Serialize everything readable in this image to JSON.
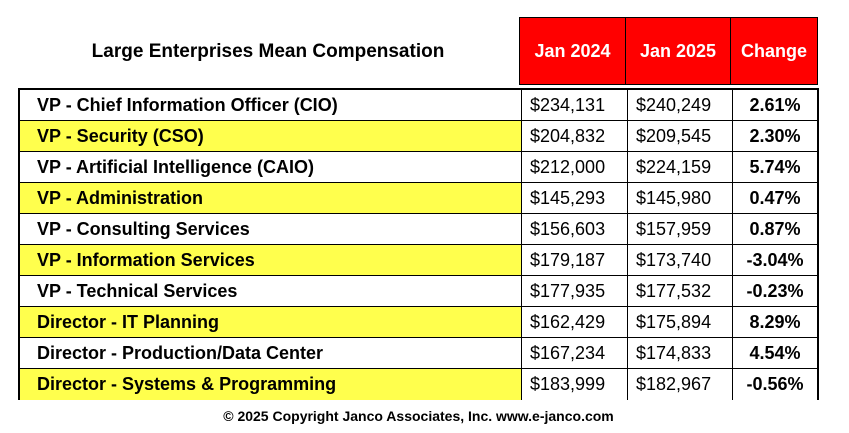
{
  "title": "Large Enterprises Mean Compensation",
  "columns": {
    "col1": "Jan 2024",
    "col2": "Jan 2025",
    "col3": "Change"
  },
  "highlight_color": "#ffff4d",
  "header_color": "#ff0000",
  "rows": [
    {
      "title": "VP - Chief Information Officer (CIO)",
      "jan2024": "$234,131",
      "jan2025": "$240,249",
      "change": "2.61%",
      "highlight": false
    },
    {
      "title": "VP - Security (CSO)",
      "jan2024": "$204,832",
      "jan2025": "$209,545",
      "change": "2.30%",
      "highlight": true
    },
    {
      "title": "VP - Artificial Intelligence (CAIO)",
      "jan2024": "$212,000",
      "jan2025": "$224,159",
      "change": "5.74%",
      "highlight": false
    },
    {
      "title": "VP - Administration",
      "jan2024": "$145,293",
      "jan2025": "$145,980",
      "change": "0.47%",
      "highlight": true
    },
    {
      "title": "VP - Consulting Services",
      "jan2024": "$156,603",
      "jan2025": "$157,959",
      "change": "0.87%",
      "highlight": false
    },
    {
      "title": "VP - Information Services",
      "jan2024": "$179,187",
      "jan2025": "$173,740",
      "change": "-3.04%",
      "highlight": true
    },
    {
      "title": "VP - Technical Services",
      "jan2024": "$177,935",
      "jan2025": "$177,532",
      "change": "-0.23%",
      "highlight": false
    },
    {
      "title": "Director - IT Planning",
      "jan2024": "$162,429",
      "jan2025": "$175,894",
      "change": "8.29%",
      "highlight": true
    },
    {
      "title": "Director - Production/Data Center",
      "jan2024": "$167,234",
      "jan2025": "$174,833",
      "change": "4.54%",
      "highlight": false
    },
    {
      "title": "Director - Systems & Programming",
      "jan2024": "$183,999",
      "jan2025": "$182,967",
      "change": "-0.56%",
      "highlight": true
    }
  ],
  "footer": "© 2025 Copyright Janco Associates, Inc. www.e-janco.com"
}
